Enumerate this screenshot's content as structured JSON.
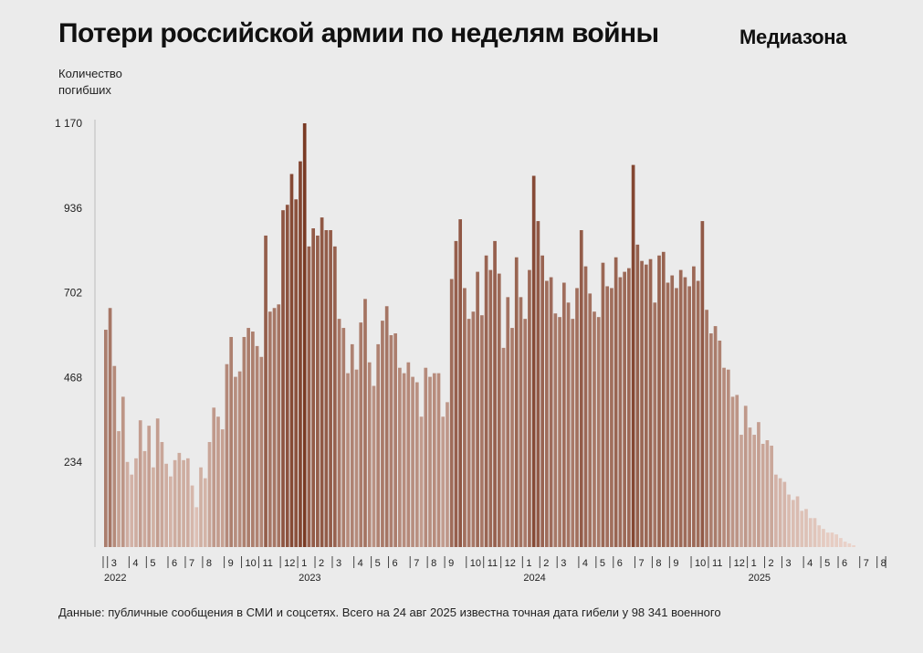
{
  "title": "Потери российской армии по неделям войны",
  "brand": "Медиазона",
  "ylabel_line1": "Количество",
  "ylabel_line2": "погибших",
  "footer": "Данные: публичные сообщения в СМИ и соцсетях. Всего на 24 авг 2025 известна точная дата гибели у 98 341 военного",
  "colors": {
    "background": "#ebebeb",
    "bar_dark": "#7a3a24",
    "bar_light": "#ecd5cc"
  },
  "chart_data": {
    "type": "bar",
    "title": "Потери российской армии по неделям войны",
    "ylabel": "Количество погибших",
    "ylim": [
      0,
      1170
    ],
    "yticks": [
      234,
      468,
      702,
      936,
      1170
    ],
    "ytick_labels": [
      "234",
      "468",
      "702",
      "936",
      "1 170"
    ],
    "month_ticks": [
      {
        "label": "",
        "week": 0
      },
      {
        "label": "3",
        "week": 1
      },
      {
        "label": "4",
        "week": 6
      },
      {
        "label": "5",
        "week": 10
      },
      {
        "label": "6",
        "week": 15
      },
      {
        "label": "7",
        "week": 19
      },
      {
        "label": "8",
        "week": 23
      },
      {
        "label": "9",
        "week": 28
      },
      {
        "label": "10",
        "week": 32
      },
      {
        "label": "11",
        "week": 36
      },
      {
        "label": "12",
        "week": 41
      },
      {
        "label": "1",
        "week": 45
      },
      {
        "label": "2",
        "week": 49
      },
      {
        "label": "3",
        "week": 53
      },
      {
        "label": "4",
        "week": 58
      },
      {
        "label": "5",
        "week": 62
      },
      {
        "label": "6",
        "week": 66
      },
      {
        "label": "7",
        "week": 71
      },
      {
        "label": "8",
        "week": 75
      },
      {
        "label": "9",
        "week": 79
      },
      {
        "label": "10",
        "week": 84
      },
      {
        "label": "11",
        "week": 88
      },
      {
        "label": "12",
        "week": 92
      },
      {
        "label": "1",
        "week": 97
      },
      {
        "label": "2",
        "week": 101
      },
      {
        "label": "3",
        "week": 105
      },
      {
        "label": "4",
        "week": 110
      },
      {
        "label": "5",
        "week": 114
      },
      {
        "label": "6",
        "week": 118
      },
      {
        "label": "7",
        "week": 123
      },
      {
        "label": "8",
        "week": 127
      },
      {
        "label": "9",
        "week": 131
      },
      {
        "label": "10",
        "week": 136
      },
      {
        "label": "11",
        "week": 140
      },
      {
        "label": "12",
        "week": 145
      },
      {
        "label": "1",
        "week": 149
      },
      {
        "label": "2",
        "week": 153
      },
      {
        "label": "3",
        "week": 157
      },
      {
        "label": "4",
        "week": 162
      },
      {
        "label": "5",
        "week": 166
      },
      {
        "label": "6",
        "week": 170
      },
      {
        "label": "7",
        "week": 175
      },
      {
        "label": "8",
        "week": 179
      },
      {
        "label": "",
        "week": 181
      }
    ],
    "year_ticks": [
      {
        "label": "2022",
        "week": 0
      },
      {
        "label": "2023",
        "week": 45
      },
      {
        "label": "2024",
        "week": 97
      },
      {
        "label": "2025",
        "week": 149
      }
    ],
    "values": [
      600,
      660,
      500,
      320,
      415,
      235,
      200,
      245,
      350,
      265,
      335,
      220,
      355,
      290,
      230,
      195,
      240,
      260,
      240,
      245,
      170,
      110,
      220,
      190,
      290,
      385,
      360,
      325,
      505,
      580,
      470,
      485,
      580,
      605,
      595,
      555,
      525,
      860,
      650,
      660,
      670,
      930,
      945,
      1030,
      960,
      1065,
      1170,
      830,
      880,
      860,
      910,
      875,
      875,
      830,
      630,
      605,
      480,
      560,
      490,
      620,
      685,
      510,
      445,
      560,
      625,
      665,
      585,
      590,
      495,
      480,
      510,
      470,
      455,
      360,
      495,
      470,
      480,
      480,
      360,
      400,
      740,
      845,
      905,
      715,
      630,
      650,
      760,
      640,
      805,
      765,
      845,
      755,
      550,
      690,
      605,
      800,
      690,
      630,
      765,
      1025,
      900,
      805,
      735,
      745,
      645,
      635,
      730,
      675,
      630,
      715,
      875,
      775,
      700,
      650,
      635,
      785,
      720,
      715,
      800,
      745,
      760,
      770,
      1055,
      835,
      790,
      780,
      795,
      675,
      805,
      815,
      730,
      750,
      715,
      765,
      745,
      720,
      775,
      735,
      900,
      655,
      590,
      610,
      570,
      495,
      490,
      415,
      420,
      310,
      390,
      330,
      310,
      345,
      285,
      295,
      280,
      200,
      190,
      180,
      145,
      130,
      140,
      100,
      105,
      80,
      80,
      60,
      50,
      40,
      40,
      35,
      25,
      15,
      10,
      5
    ]
  }
}
